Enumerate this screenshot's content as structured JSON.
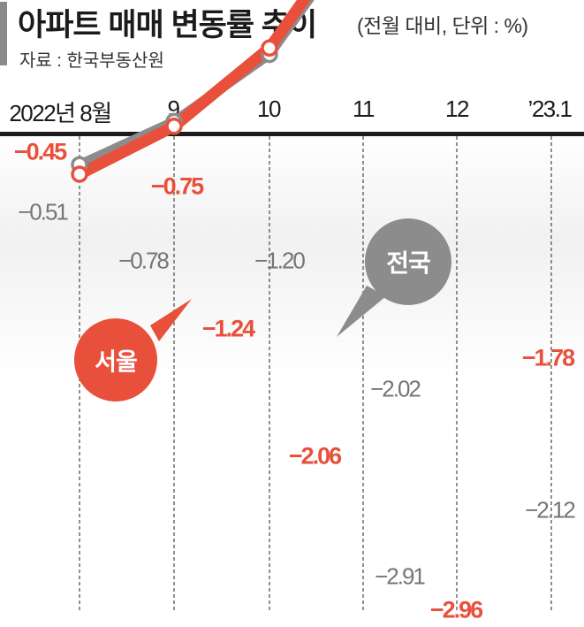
{
  "header": {
    "title": "아파트 매매 변동률 추이",
    "unit_note": "(전월 대비, 단위 : %)",
    "source": "자료 : 한국부동산원"
  },
  "chart_data": {
    "type": "line",
    "categories": [
      "2022년 8월",
      "9",
      "10",
      "11",
      "12",
      "’23.1"
    ],
    "ylim": [
      -3.3,
      -0.2
    ],
    "series": [
      {
        "name": "전국",
        "values": [
          -0.51,
          -0.78,
          -1.2,
          -2.02,
          -2.91,
          -2.12
        ],
        "labels": [
          "−0.51",
          "−0.78",
          "−1.20",
          "−2.02",
          "−2.91",
          "−2.12"
        ],
        "color": "#8c8c8c"
      },
      {
        "name": "서울",
        "values": [
          -0.45,
          -0.75,
          -1.24,
          -2.06,
          -2.96,
          -1.78
        ],
        "labels": [
          "−0.45",
          "−0.75",
          "−1.24",
          "−2.06",
          "−2.96",
          "−1.78"
        ],
        "color": "#e8503c"
      }
    ]
  }
}
